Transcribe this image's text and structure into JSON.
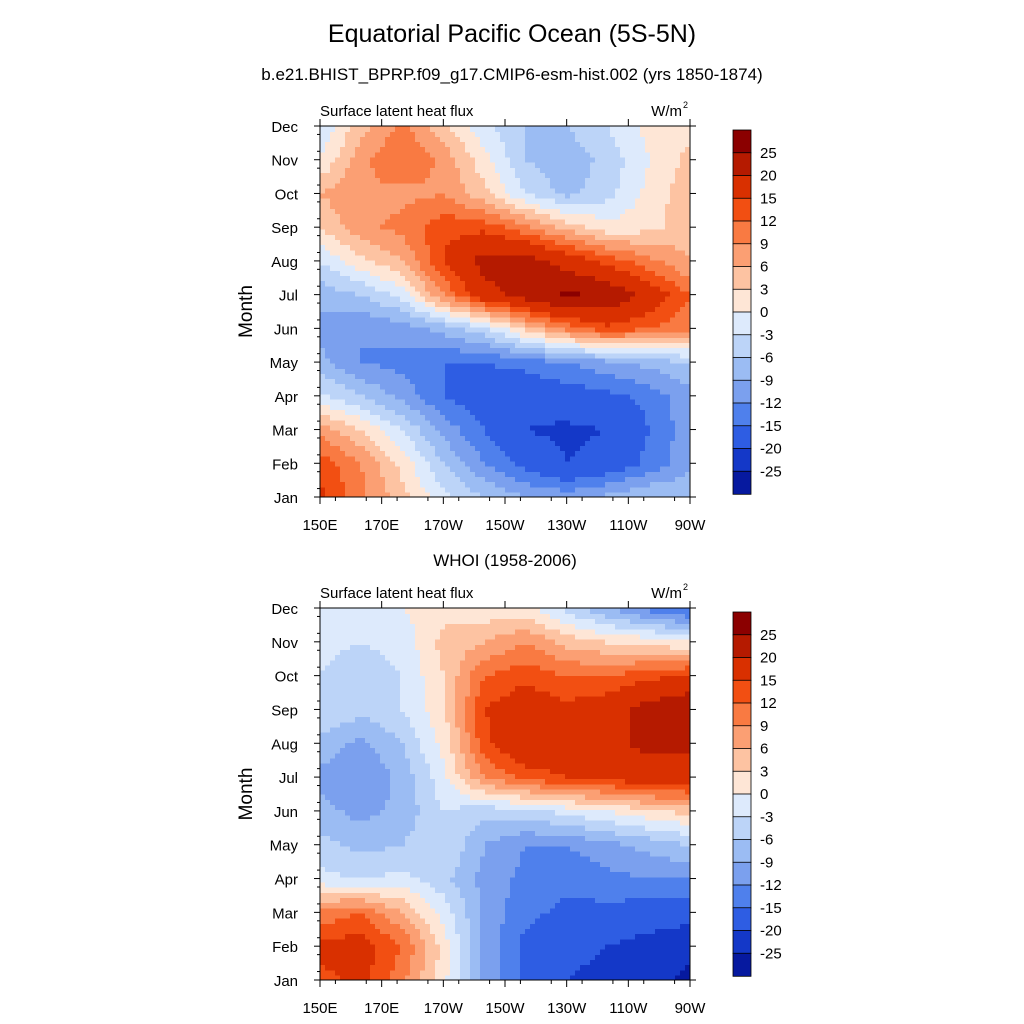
{
  "figure": {
    "title": "Equatorial Pacific Ocean (5S-5N)",
    "subtitle": "b.e21.BHIST_BPRP.f09_g17.CMIP6-esm-hist.002 (yrs 1850-1874)"
  },
  "chart_data": [
    {
      "type": "heatmap",
      "title": "",
      "left_string": "Surface latent heat flux",
      "units": "W/m",
      "units_superscript": "2",
      "ylabel": "Month",
      "xlabel": "",
      "x_ticks": [
        "150E",
        "170E",
        "170W",
        "150W",
        "130W",
        "110W",
        "90W"
      ],
      "y_ticks": [
        "Jan",
        "Feb",
        "Mar",
        "Apr",
        "May",
        "Jun",
        "Jul",
        "Aug",
        "Sep",
        "Oct",
        "Nov",
        "Dec"
      ],
      "x_range": [
        "150E",
        "90W"
      ],
      "colorbar_labels": [
        "25",
        "20",
        "15",
        "12",
        "9",
        "6",
        "3",
        "0",
        "-3",
        "-6",
        "-9",
        "-12",
        "-15",
        "-20",
        "-25"
      ],
      "colors": [
        "#8b0000",
        "#b51a00",
        "#d93000",
        "#f24f12",
        "#f97a42",
        "#fb9f73",
        "#fdc3a2",
        "#fee6d6",
        "#ddeafc",
        "#bcd4f8",
        "#9bbcf3",
        "#7ba0ee",
        "#4f80ec",
        "#2e5de3",
        "#1438c8",
        "#06199f"
      ],
      "approx_values": [
        [
          16,
          10,
          4,
          -2,
          -6,
          -9,
          -10,
          -8,
          -6,
          -6
        ],
        [
          14,
          9,
          2,
          -6,
          -12,
          -16,
          -20,
          -18,
          -14,
          -10
        ],
        [
          8,
          3,
          -3,
          -10,
          -15,
          -20,
          -21,
          -20,
          -15,
          -10
        ],
        [
          -2,
          -6,
          -10,
          -15,
          -17,
          -18,
          -17,
          -16,
          -14,
          -10
        ],
        [
          -8,
          -12,
          -13,
          -15,
          -15,
          -14,
          -12,
          -10,
          -8,
          -6
        ],
        [
          -10,
          -12,
          -11,
          -8,
          -4,
          4,
          10,
          14,
          12,
          10
        ],
        [
          -8,
          -6,
          -2,
          9,
          18,
          22,
          26,
          24,
          18,
          12
        ],
        [
          -3,
          2,
          6,
          15,
          22,
          22,
          18,
          14,
          10,
          6
        ],
        [
          3,
          8,
          10,
          14,
          14,
          10,
          5,
          1,
          2,
          5
        ],
        [
          6,
          9,
          8,
          9,
          4,
          -3,
          -7,
          -4,
          1,
          5
        ],
        [
          0,
          8,
          12,
          8,
          1,
          -6,
          -8,
          -5,
          0,
          4
        ],
        [
          -3,
          5,
          10,
          4,
          -2,
          -6,
          -6,
          -3,
          1,
          2
        ]
      ]
    },
    {
      "type": "heatmap",
      "title": "WHOI (1958-2006)",
      "left_string": "Surface latent heat flux",
      "units": "W/m",
      "units_superscript": "2",
      "ylabel": "Month",
      "xlabel": "",
      "x_ticks": [
        "150E",
        "170E",
        "170W",
        "150W",
        "130W",
        "110W",
        "90W"
      ],
      "y_ticks": [
        "Jan",
        "Feb",
        "Mar",
        "Apr",
        "May",
        "Jun",
        "Jul",
        "Aug",
        "Sep",
        "Oct",
        "Nov",
        "Dec"
      ],
      "x_range": [
        "150E",
        "90W"
      ],
      "colorbar_labels": [
        "25",
        "20",
        "15",
        "12",
        "9",
        "6",
        "3",
        "0",
        "-3",
        "-6",
        "-9",
        "-12",
        "-15",
        "-20",
        "-25"
      ],
      "colors": [
        "#8b0000",
        "#b51a00",
        "#d93000",
        "#f24f12",
        "#f97a42",
        "#fb9f73",
        "#fdc3a2",
        "#fee6d6",
        "#ddeafc",
        "#bcd4f8",
        "#9bbcf3",
        "#7ba0ee",
        "#4f80ec",
        "#2e5de3",
        "#1438c8",
        "#06199f"
      ],
      "approx_values": [
        [
          14,
          16,
          10,
          1,
          -10,
          -16,
          -20,
          -22,
          -24,
          -26
        ],
        [
          16,
          17,
          12,
          2,
          -10,
          -16,
          -18,
          -20,
          -22,
          -24
        ],
        [
          10,
          12,
          6,
          -1,
          -10,
          -14,
          -16,
          -16,
          -17,
          -18
        ],
        [
          -2,
          -3,
          -2,
          -5,
          -10,
          -13,
          -14,
          -13,
          -12,
          -12
        ],
        [
          -5,
          -7,
          -6,
          -3,
          -9,
          -12,
          -12,
          -10,
          -8,
          -6
        ],
        [
          -8,
          -10,
          -8,
          -3,
          -5,
          -4,
          -2,
          0,
          2,
          4
        ],
        [
          -10,
          -12,
          -8,
          -1,
          9,
          13,
          15,
          16,
          18,
          18
        ],
        [
          -7,
          -10,
          -6,
          1,
          14,
          19,
          18,
          19,
          21,
          21
        ],
        [
          -3,
          -5,
          -3,
          2,
          15,
          18,
          16,
          18,
          22,
          24
        ],
        [
          -3,
          -5,
          -3,
          3,
          12,
          14,
          12,
          12,
          14,
          16
        ],
        [
          -2,
          -3,
          -2,
          4,
          6,
          9,
          5,
          3,
          2,
          0
        ],
        [
          -1,
          -1,
          0,
          2,
          1,
          1,
          -4,
          -9,
          -13,
          -16
        ]
      ]
    }
  ]
}
